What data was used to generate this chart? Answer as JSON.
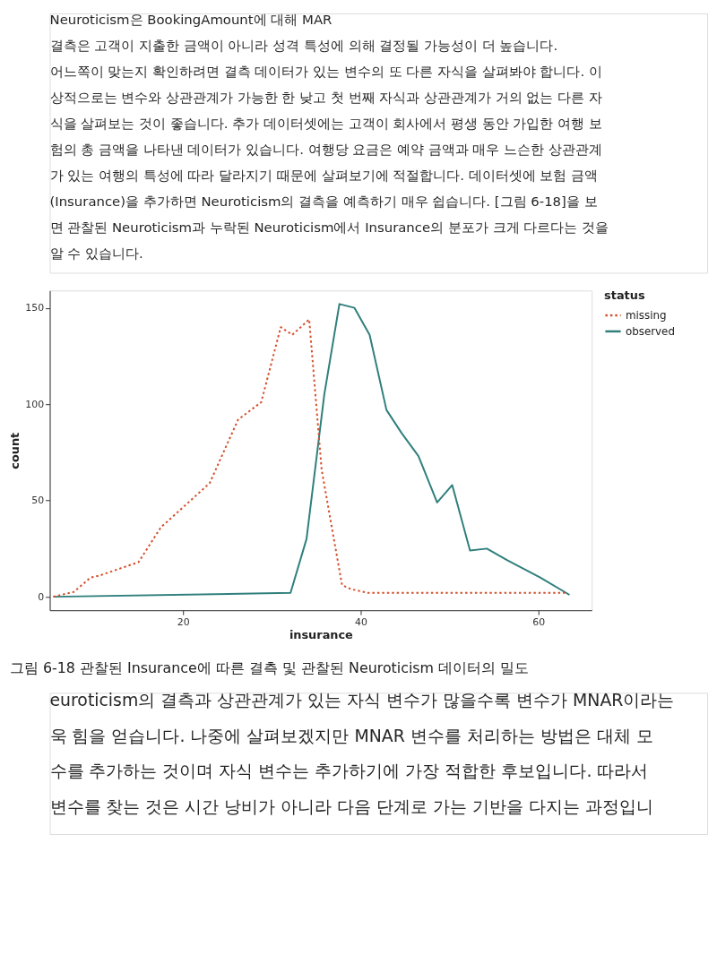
{
  "chart_data": {
    "type": "line",
    "title": "그림 6-18 관찰된 Insurance에 따른 결측 및 관찰된 Neuroticism 데이터의 밀도",
    "xlabel": "insurance",
    "ylabel": "count",
    "legend_title": "status",
    "legend": "right",
    "xlim": [
      5,
      66
    ],
    "ylim": [
      -7,
      159
    ],
    "xticks": [
      20,
      40,
      60
    ],
    "yticks": [
      0,
      50,
      100,
      150
    ],
    "series": [
      {
        "name": "missing",
        "color": "#d4502c",
        "line_style": "dotted",
        "x": [
          5.4,
          7.7,
          9.6,
          10.6,
          15.0,
          17.5,
          23.0,
          26.2,
          28.8,
          31.0,
          32.3,
          34.2,
          35.6,
          37.9,
          38.9,
          40.8,
          52.0,
          63.2
        ],
        "values": [
          0,
          2.5,
          10,
          11,
          18,
          36,
          59,
          92,
          101,
          140,
          136,
          144,
          66,
          6,
          4,
          2,
          2,
          2
        ]
      },
      {
        "name": "observed",
        "color": "#2f7f7c",
        "line_style": "solid",
        "x": [
          5.4,
          32.1,
          33.9,
          35.9,
          37.6,
          39.3,
          41.0,
          42.9,
          44.6,
          46.5,
          48.6,
          50.3,
          52.3,
          54.2,
          56.5,
          60.2,
          63.5
        ],
        "values": [
          0,
          2,
          30,
          105,
          152,
          150,
          136,
          97,
          85,
          73,
          49,
          58,
          24,
          25,
          19,
          10,
          1
        ]
      }
    ],
    "annotations": [
      "Neuroticism은 BookingAmount에 대해 MAR\n결측은 고객이 지출한 금액이 아니라 성격 특성에 의해 결정될 가능성이 더 높습니다.\n어느쪽이 맞는지 확인하려면 결측 데이터가 있는 변수의 또 다른 자식을 살펴봐야 합니다. 이\n상적으로는 변수와 상관관계가 가능한 한 낮고 첫 번째 자식과 상관관계가 거의 없는 다른 자\n식을 살펴보는 것이 좋습니다. 추가 데이터셋에는 고객이 회사에서 평생 동안 가입한 여행 보\n험의 총 금액을 나타낸 데이터가 있습니다. 여행당 요금은 예약 금액과 매우 느슨한 상관관계\n가 있는 여행의 특성에 따라 달라지기 때문에 살펴보기에 적절합니다. 데이터셋에 보험 금액\n(Insurance)을 추가하면 Neuroticism의 결측을 예측하기 매우 쉽습니다. [그림 6-18]을 보\n면 관찰된 Neuroticism과 누락된 Neuroticism에서 Insurance의 분포가 크게 다르다는 것을\n알 수 있습니다.",
      "euroticism의 결측과 상관관계가 있는 자식 변수가 많을수록 변수가 MNAR이라는\n욱 힘을 얻습니다. 나중에 살펴보겠지만 MNAR 변수를 처리하는 방법은 대체 모\n수를 추가하는 것이며 자식 변수는 추가하기에 가장 적합한 후보입니다. 따라서\n변수를 찾는 것은 시간 낭비가 아니라 다음 단계로 가는 기반을 다지는 과정입니"
    ]
  }
}
